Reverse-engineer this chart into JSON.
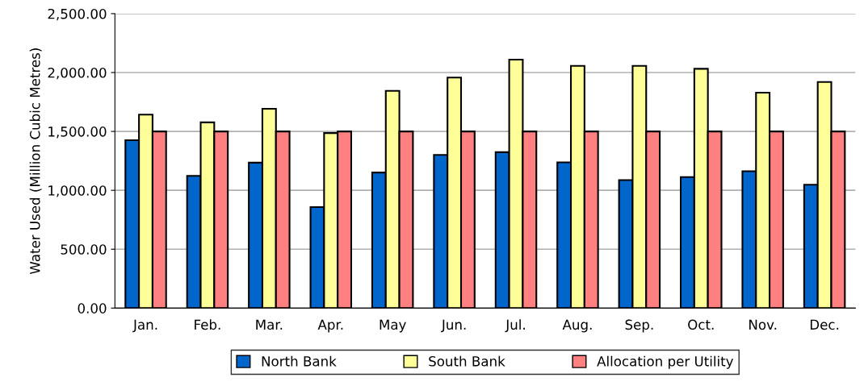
{
  "chart_data": {
    "type": "bar",
    "ylabel": "Water Used (Million Cubic Metres)",
    "categories": [
      "Jan.",
      "Feb.",
      "Mar.",
      "Apr.",
      "May",
      "Jun.",
      "Jul.",
      "Aug.",
      "Sep.",
      "Oct.",
      "Nov.",
      "Dec."
    ],
    "series": [
      {
        "name": "North Bank",
        "color": "#0066cc",
        "values": [
          1425,
          1123,
          1235,
          858,
          1151,
          1301,
          1324,
          1237,
          1087,
          1112,
          1162,
          1048
        ]
      },
      {
        "name": "South Bank",
        "color": "#ffff99",
        "values": [
          1643,
          1577,
          1692,
          1486,
          1845,
          1957,
          2110,
          2057,
          2057,
          2032,
          1829,
          1920
        ]
      },
      {
        "name": "Allocation per Utility",
        "color": "#ff8080",
        "values": [
          1500,
          1500,
          1500,
          1500,
          1500,
          1500,
          1500,
          1500,
          1500,
          1500,
          1500,
          1500
        ]
      }
    ],
    "ylim": [
      0,
      2500
    ],
    "yticks": [
      {
        "value": 0,
        "label": "0.00"
      },
      {
        "value": 500,
        "label": "500.00"
      },
      {
        "value": 1000,
        "label": "1,000.00"
      },
      {
        "value": 1500,
        "label": "1,500.00"
      },
      {
        "value": 2000,
        "label": "2,000.00"
      },
      {
        "value": 2500,
        "label": "2,500.00"
      }
    ],
    "grid": "y",
    "legend": "bottom"
  }
}
